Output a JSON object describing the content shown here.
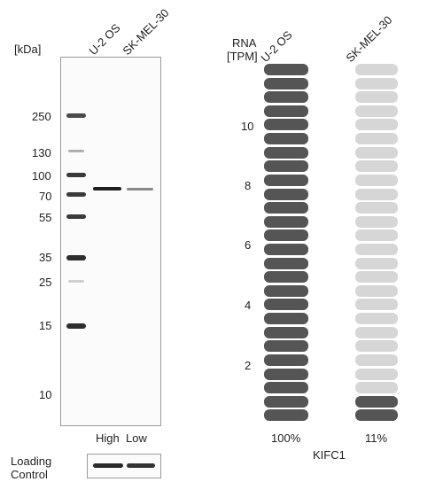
{
  "western_blot": {
    "kda_label": "[kDa]",
    "lane_labels": [
      "U-2 OS",
      "SK-MEL-30"
    ],
    "ladder_markers": [
      "250",
      "130",
      "100",
      "70",
      "55",
      "35",
      "25",
      "15",
      "10"
    ],
    "bottom_labels": [
      "High",
      "Low"
    ],
    "loading_control_label_line1": "Loading",
    "loading_control_label_line2": "Control"
  },
  "rna": {
    "header_line1": "RNA",
    "header_line2": "[TPM]",
    "sample_labels": [
      "U-2 OS",
      "SK-MEL-30"
    ],
    "axis_ticks": [
      "10",
      "8",
      "6",
      "4",
      "2"
    ],
    "segments_per_sample": 26,
    "filled_segments": [
      26,
      2
    ],
    "filled_color": "#555555",
    "empty_color": "#d6d6d6",
    "percentages": [
      "100%",
      "11%"
    ],
    "gene_name": "KIFC1"
  }
}
